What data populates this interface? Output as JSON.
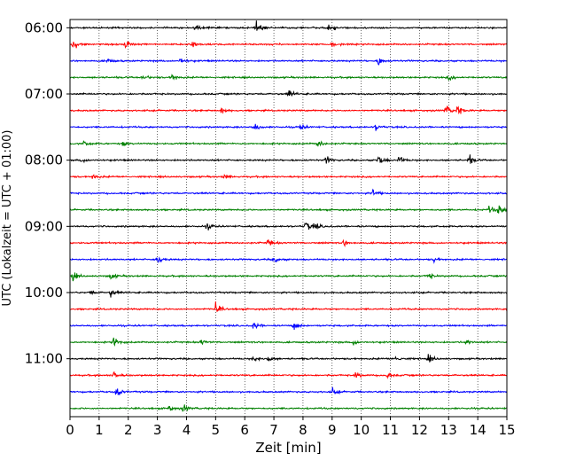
{
  "chart_data": {
    "type": "line",
    "subtype": "helicorder-seismogram",
    "xlabel": "Zeit  [min]",
    "ylabel": "UTC (Lokalzeit = UTC + 01:00)",
    "xlim": [
      0,
      15
    ],
    "x_ticks": [
      "0",
      "1",
      "2",
      "3",
      "4",
      "5",
      "6",
      "7",
      "8",
      "9",
      "10",
      "11",
      "12",
      "13",
      "14",
      "15"
    ],
    "ylim_rows": [
      -0.5,
      23.5
    ],
    "y_tick_rows": [
      0,
      4,
      8,
      12,
      16,
      20
    ],
    "y_tick_labels": [
      "06:00",
      "07:00",
      "08:00",
      "09:00",
      "10:00",
      "11:00"
    ],
    "grid": "vertical-dotted-at-each-minute",
    "row_interval_minutes": 15,
    "row_colors": [
      "#000000",
      "#ff0000",
      "#0000ff",
      "#008000"
    ],
    "series": [
      {
        "row": 0,
        "color": "#000000",
        "events": [
          [
            4.3,
            0.55
          ],
          [
            6.4,
            1.0
          ],
          [
            8.9,
            0.8
          ]
        ]
      },
      {
        "row": 1,
        "color": "#ff0000",
        "events": [
          [
            0.1,
            1.0
          ],
          [
            1.9,
            0.8
          ],
          [
            4.2,
            0.9
          ],
          [
            9.0,
            0.4
          ]
        ]
      },
      {
        "row": 2,
        "color": "#0000ff",
        "events": [
          [
            1.3,
            0.4
          ],
          [
            3.8,
            0.6
          ],
          [
            10.6,
            0.8
          ]
        ]
      },
      {
        "row": 3,
        "color": "#008000",
        "events": [
          [
            2.5,
            0.5
          ],
          [
            3.5,
            0.6
          ],
          [
            13.0,
            0.4
          ]
        ]
      },
      {
        "row": 4,
        "color": "#000000",
        "events": [
          [
            7.5,
            0.8
          ]
        ]
      },
      {
        "row": 5,
        "color": "#ff0000",
        "events": [
          [
            5.2,
            0.5
          ],
          [
            12.9,
            0.9
          ],
          [
            13.3,
            0.8
          ]
        ]
      },
      {
        "row": 6,
        "color": "#0000ff",
        "events": [
          [
            6.3,
            0.9
          ],
          [
            7.9,
            0.6
          ],
          [
            10.5,
            0.5
          ]
        ]
      },
      {
        "row": 7,
        "color": "#008000",
        "events": [
          [
            0.5,
            0.5
          ],
          [
            1.8,
            0.5
          ],
          [
            8.5,
            0.7
          ]
        ]
      },
      {
        "row": 8,
        "color": "#000000",
        "events": [
          [
            0.4,
            0.4
          ],
          [
            8.8,
            0.6
          ],
          [
            10.6,
            1.0
          ],
          [
            11.3,
            0.7
          ],
          [
            13.7,
            0.8
          ]
        ]
      },
      {
        "row": 9,
        "color": "#ff0000",
        "events": [
          [
            0.8,
            0.4
          ],
          [
            5.3,
            0.4
          ]
        ]
      },
      {
        "row": 10,
        "color": "#0000ff",
        "events": [
          [
            10.4,
            0.6
          ]
        ]
      },
      {
        "row": 11,
        "color": "#008000",
        "events": [
          [
            14.4,
            0.6
          ],
          [
            14.7,
            1.0
          ]
        ]
      },
      {
        "row": 12,
        "color": "#000000",
        "events": [
          [
            4.7,
            0.6
          ],
          [
            8.1,
            0.9
          ],
          [
            8.4,
            0.6
          ]
        ]
      },
      {
        "row": 13,
        "color": "#ff0000",
        "events": [
          [
            6.8,
            0.7
          ],
          [
            9.4,
            0.5
          ]
        ]
      },
      {
        "row": 14,
        "color": "#0000ff",
        "events": [
          [
            3.0,
            0.8
          ],
          [
            7.0,
            0.7
          ],
          [
            12.5,
            0.4
          ]
        ]
      },
      {
        "row": 15,
        "color": "#008000",
        "events": [
          [
            0.1,
            0.8
          ],
          [
            1.4,
            0.5
          ],
          [
            12.3,
            0.6
          ]
        ]
      },
      {
        "row": 16,
        "color": "#000000",
        "events": [
          [
            0.7,
            0.4
          ],
          [
            1.4,
            0.7
          ]
        ]
      },
      {
        "row": 17,
        "color": "#ff0000",
        "events": [
          [
            5.0,
            1.0
          ]
        ]
      },
      {
        "row": 18,
        "color": "#0000ff",
        "events": [
          [
            6.3,
            0.7
          ],
          [
            7.7,
            0.7
          ]
        ]
      },
      {
        "row": 19,
        "color": "#008000",
        "events": [
          [
            1.5,
            1.0
          ],
          [
            4.5,
            0.5
          ],
          [
            9.7,
            0.6
          ],
          [
            13.6,
            0.5
          ]
        ]
      },
      {
        "row": 20,
        "color": "#000000",
        "events": [
          [
            6.3,
            0.5
          ],
          [
            6.8,
            0.5
          ],
          [
            11.2,
            0.5
          ],
          [
            12.3,
            0.7
          ]
        ]
      },
      {
        "row": 21,
        "color": "#ff0000",
        "events": [
          [
            1.5,
            0.6
          ],
          [
            9.8,
            0.6
          ],
          [
            10.9,
            0.5
          ]
        ]
      },
      {
        "row": 22,
        "color": "#0000ff",
        "events": [
          [
            1.6,
            0.9
          ],
          [
            9.0,
            0.6
          ]
        ]
      },
      {
        "row": 23,
        "color": "#008000",
        "events": [
          [
            3.4,
            0.6
          ],
          [
            3.9,
            0.6
          ]
        ]
      }
    ]
  }
}
